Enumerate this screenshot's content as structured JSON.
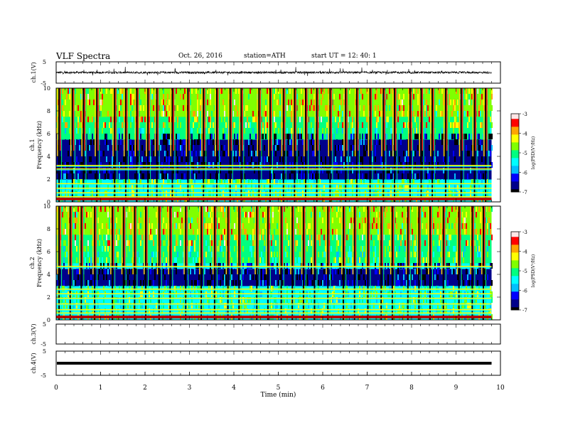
{
  "header": {
    "title": "VLF  Spectra",
    "date": "Oct. 26, 2016",
    "station": "station=ATH",
    "start": "start  UT  =   12: 40: 1"
  },
  "colors": {
    "waveform": "#000000",
    "colormap": [
      "#000000",
      "#00008b",
      "#0000ff",
      "#00bfff",
      "#00ffff",
      "#00ff80",
      "#80ff00",
      "#ffff00",
      "#ffa500",
      "#ff0000",
      "#ffe6e6"
    ]
  },
  "chart_data": [
    {
      "type": "line",
      "panel": "ch1-waveform",
      "ylabel": "ch.1(V)",
      "ylim": [
        -5,
        5
      ],
      "yticks": [
        "5",
        "-5"
      ],
      "xlim": [
        0,
        10
      ],
      "baseline": 0.0,
      "envelope_amplitude": 0.5,
      "spike_amplitude": 2.0,
      "data_end_min": 9.8
    },
    {
      "type": "heatmap",
      "panel": "ch1-spectrogram",
      "ylabel": "ch.1",
      "ylabel2": "Frequency  (kHz)",
      "ylim": [
        0,
        10
      ],
      "yticks": [
        "0",
        "2",
        "4",
        "6",
        "8",
        "10"
      ],
      "xlim": [
        0,
        10
      ],
      "data_end_min": 9.8,
      "colorbar": {
        "label": "log(PSD(V²/Hz)",
        "range": [
          -7,
          -3
        ],
        "ticks": [
          "-3",
          "-4",
          "-5",
          "-6",
          "-7"
        ]
      },
      "dark_band_khz": [
        2.0,
        5.5
      ],
      "strong_lines_khz": [
        0.25,
        0.45,
        0.8,
        1.2,
        1.6,
        2.9,
        3.2
      ],
      "bursts_min": [
        0.05,
        0.35,
        0.6,
        0.9,
        1.3,
        1.55,
        1.8,
        2.05,
        2.25,
        2.6,
        2.95,
        3.3,
        3.6,
        3.9,
        4.15,
        4.55,
        4.8,
        5.1,
        5.35,
        5.6,
        5.85,
        6.15,
        6.5,
        6.75,
        7.05,
        7.35,
        7.6,
        7.95,
        8.2,
        8.45,
        8.75,
        9.1,
        9.4,
        9.65
      ]
    },
    {
      "type": "heatmap",
      "panel": "ch2-spectrogram",
      "ylabel": "ch.2",
      "ylabel2": "Frequency  (kHz)",
      "ylim": [
        0,
        10
      ],
      "yticks": [
        "0",
        "2",
        "4",
        "6",
        "8",
        "10"
      ],
      "xlim": [
        0,
        10
      ],
      "data_end_min": 9.8,
      "colorbar": {
        "label": "log(PSD(V²/Hz)",
        "range": [
          -7,
          -3
        ],
        "ticks": [
          "-3",
          "-4",
          "-5",
          "-6",
          "-7"
        ]
      },
      "dark_band_khz": [
        2.8,
        4.5
      ],
      "strong_lines_khz": [
        0.3,
        0.6,
        0.9,
        1.4,
        1.9,
        2.3,
        2.7,
        4.7
      ],
      "bursts_min": [
        0.05,
        0.3,
        0.55,
        0.85,
        1.25,
        1.5,
        1.75,
        2.0,
        2.3,
        2.55,
        2.9,
        3.25,
        3.55,
        3.85,
        4.1,
        4.5,
        4.75,
        5.05,
        5.3,
        5.55,
        5.8,
        6.1,
        6.45,
        6.7,
        7.0,
        7.3,
        7.55,
        7.9,
        8.15,
        8.4,
        8.7,
        9.05,
        9.35,
        9.6
      ]
    },
    {
      "type": "line",
      "panel": "ch3-waveform",
      "ylabel": "ch.3(V)",
      "ylim": [
        -5,
        5
      ],
      "yticks": [
        "5",
        "-5"
      ],
      "xlim": [
        0,
        10
      ],
      "empty": true
    },
    {
      "type": "line",
      "panel": "ch4-waveform",
      "ylabel": "ch.4(V)",
      "ylim": [
        -5,
        5
      ],
      "yticks": [
        "5",
        "-5"
      ],
      "xlim": [
        0,
        10
      ],
      "baseline": 0.0,
      "data_end_min": 9.8
    }
  ],
  "xaxis": {
    "label": "Time  (min)",
    "ticks": [
      "0",
      "1",
      "2",
      "3",
      "4",
      "5",
      "6",
      "7",
      "8",
      "9",
      "10"
    ]
  }
}
